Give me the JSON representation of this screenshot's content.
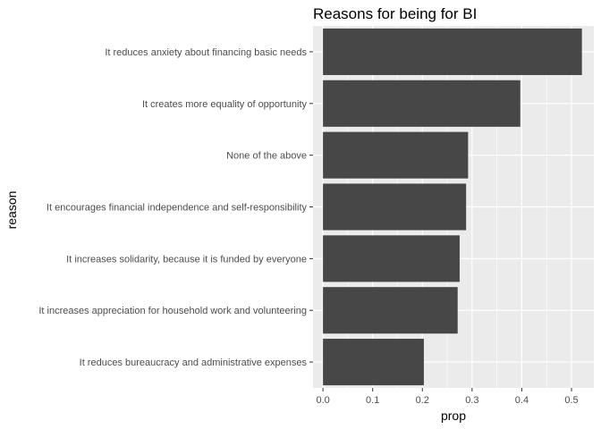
{
  "chart_data": {
    "type": "bar",
    "orientation": "horizontal",
    "title": "Reasons for being for BI",
    "xlabel": "prop",
    "ylabel": "reason",
    "xlim": [
      -0.02,
      0.545
    ],
    "xticks": [
      0.0,
      0.1,
      0.2,
      0.3,
      0.4,
      0.5
    ],
    "xtick_labels": [
      "0.0",
      "0.1",
      "0.2",
      "0.3",
      "0.4",
      "0.5"
    ],
    "grid": true,
    "categories": [
      "It reduces anxiety about financing basic needs",
      "It creates more equality of opportunity",
      "None of the above",
      "It encourages financial independence and self-responsibility",
      "It increases solidarity, because it is funded by everyone",
      "It increases appreciation for household work and volunteering",
      "It reduces bureaucracy and administrative expenses"
    ],
    "values": [
      0.521,
      0.397,
      0.292,
      0.288,
      0.275,
      0.271,
      0.203
    ],
    "colors": {
      "bar": "#474747",
      "panel": "#ebebeb",
      "grid": "#ffffff"
    }
  }
}
